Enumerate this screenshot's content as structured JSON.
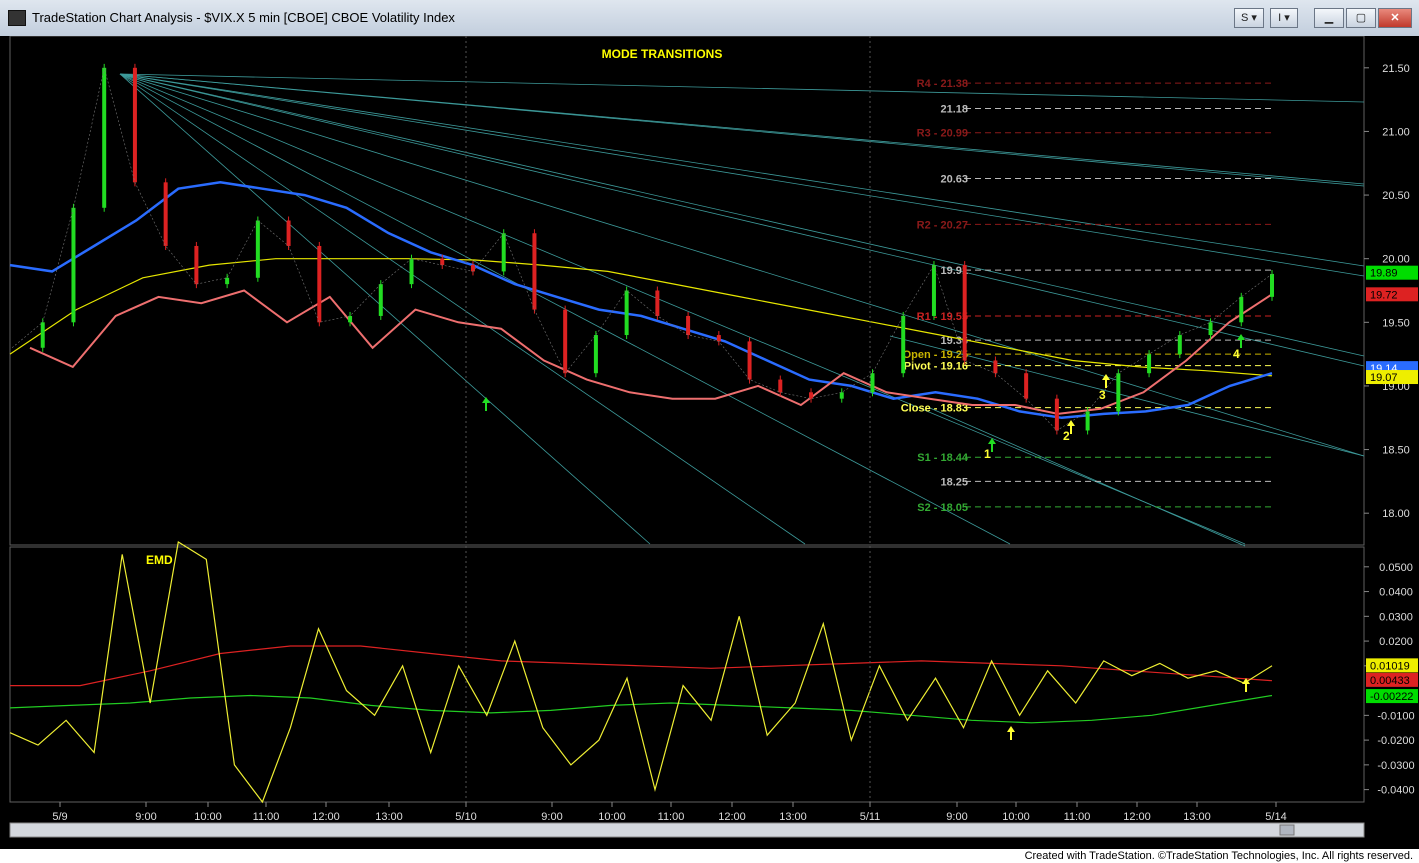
{
  "window": {
    "title": "TradeStation Chart Analysis - $VIX.X 5 min [CBOE] CBOE Volatility Index",
    "menu_s": "S",
    "menu_i": "I"
  },
  "status": {
    "footer": "Created with TradeStation. ©TradeStation Technologies, Inc. All rights reserved."
  },
  "chart_data": [
    {
      "type": "line",
      "title": "MODE TRANSITIONS",
      "ylim": [
        17.75,
        21.75
      ],
      "y_ticks": [
        "21.50",
        "21.00",
        "20.50",
        "20.00",
        "19.50",
        "19.00",
        "18.50",
        "18.00"
      ],
      "x_tick_labels": [
        "5/9",
        "9:00",
        "10:00",
        "11:00",
        "12:00",
        "13:00",
        "5/10",
        "9:00",
        "10:00",
        "11:00",
        "12:00",
        "13:00",
        "5/11",
        "9:00",
        "10:00",
        "11:00",
        "12:00",
        "13:00",
        "5/14"
      ],
      "series": [
        {
          "values": [
            19.3,
            19.5,
            20.4,
            21.5,
            20.6,
            20.1,
            19.8,
            19.85,
            20.3,
            20.1,
            19.5,
            19.55,
            19.8,
            20.0,
            19.95,
            19.9,
            20.2,
            19.6,
            19.1,
            19.4,
            19.75,
            19.55,
            19.4,
            19.35,
            19.05,
            18.95,
            18.9,
            18.95,
            19.1,
            19.55,
            19.95,
            19.2,
            19.1,
            18.9,
            18.65,
            18.8,
            19.1,
            19.25,
            19.4,
            19.5,
            19.7,
            19.88
          ]
        },
        {
          "values": [
            19.95,
            19.9,
            20.1,
            20.3,
            20.55,
            20.6,
            20.55,
            20.5,
            20.4,
            20.2,
            20.05,
            19.95,
            19.8,
            19.7,
            19.6,
            19.55,
            19.45,
            19.35,
            19.2,
            19.05,
            19.0,
            18.9,
            18.95,
            18.9,
            18.8,
            18.75,
            18.78,
            18.8,
            18.85,
            19.0,
            19.1
          ]
        },
        {
          "values": [
            19.25,
            19.6,
            19.85,
            19.95,
            20.0,
            20.0,
            20.0,
            19.99,
            19.95,
            19.9,
            19.8,
            19.7,
            19.6,
            19.5,
            19.4,
            19.3,
            19.2,
            19.15,
            19.12,
            19.08
          ]
        },
        {
          "values": [
            19.3,
            19.15,
            19.55,
            19.7,
            19.65,
            19.75,
            19.5,
            19.7,
            19.3,
            19.6,
            19.5,
            19.45,
            19.2,
            19.05,
            18.95,
            18.9,
            18.9,
            19.0,
            18.85,
            19.1,
            18.95,
            18.9,
            18.85,
            18.85,
            18.78,
            18.82,
            18.95,
            19.2,
            19.5,
            19.72
          ]
        }
      ],
      "pivot_levels": [
        {
          "label": "R4 - 21.38",
          "value": 21.38,
          "color": "#8b1a1a"
        },
        {
          "label": "21.18",
          "value": 21.18,
          "color": "#bbbbbb"
        },
        {
          "label": "R3 - 20.99",
          "value": 20.99,
          "color": "#8b1a1a"
        },
        {
          "label": "20.63",
          "value": 20.63,
          "color": "#bbbbbb"
        },
        {
          "label": "R2 - 20.27",
          "value": 20.27,
          "color": "#8b1a1a"
        },
        {
          "label": "19.91",
          "value": 19.91,
          "color": "#bbbbbb"
        },
        {
          "label": "R1 - 19.55",
          "value": 19.55,
          "color": "#cc2222"
        },
        {
          "label": "19.36",
          "value": 19.36,
          "color": "#bbbbbb"
        },
        {
          "label": "Open - 19.25",
          "value": 19.25,
          "color": "#c9b400"
        },
        {
          "label": "Pivot - 19.16",
          "value": 19.16,
          "color": "#ffff55"
        },
        {
          "label": "Close - 18.83",
          "value": 18.83,
          "color": "#ffff55"
        },
        {
          "label": "S1 - 18.44",
          "value": 18.44,
          "color": "#33aa33"
        },
        {
          "label": "18.25",
          "value": 18.25,
          "color": "#bbbbbb"
        },
        {
          "label": "S2 - 18.05",
          "value": 18.05,
          "color": "#33aa33"
        }
      ],
      "price_tags": [
        {
          "label": "19.89",
          "value": 19.89,
          "color": "#00dd00"
        },
        {
          "label": "19.72",
          "value": 19.72,
          "color": "#dd2222"
        },
        {
          "label": "19.14",
          "value": 19.14,
          "color": "#2a6cff"
        },
        {
          "label": "19.07",
          "value": 19.07,
          "color": "#eeee00"
        }
      ],
      "annotations": [
        "1",
        "2",
        "3",
        "4"
      ]
    },
    {
      "type": "line",
      "title": "EMD",
      "ylim": [
        -0.045,
        0.058
      ],
      "y_ticks": [
        "0.0500",
        "0.0400",
        "0.0300",
        "0.0200",
        "0.0100",
        "-0.0100",
        "-0.0200",
        "-0.0300",
        "-0.0400"
      ],
      "series": [
        {
          "values": [
            -0.017,
            -0.022,
            -0.012,
            -0.025,
            0.055,
            -0.005,
            0.06,
            0.053,
            -0.03,
            -0.045,
            -0.015,
            0.025,
            0.0,
            -0.01,
            0.01,
            -0.025,
            0.01,
            -0.01,
            0.02,
            -0.015,
            -0.03,
            -0.02,
            0.005,
            -0.04,
            0.002,
            -0.012,
            0.03,
            -0.018,
            -0.005,
            0.027,
            -0.02,
            0.01,
            -0.012,
            0.005,
            -0.015,
            0.012,
            -0.01,
            0.008,
            -0.005,
            0.012,
            0.006,
            0.011,
            0.005,
            0.008,
            0.003,
            0.01
          ]
        },
        {
          "values": [
            0.002,
            0.002,
            0.008,
            0.015,
            0.018,
            0.018,
            0.015,
            0.012,
            0.011,
            0.01,
            0.009,
            0.01,
            0.011,
            0.012,
            0.011,
            0.01,
            0.008,
            0.006,
            0.004
          ]
        },
        {
          "values": [
            -0.007,
            -0.006,
            -0.005,
            -0.003,
            -0.002,
            -0.003,
            -0.006,
            -0.008,
            -0.009,
            -0.008,
            -0.006,
            -0.005,
            -0.006,
            -0.007,
            -0.008,
            -0.01,
            -0.012,
            -0.013,
            -0.012,
            -0.01,
            -0.006,
            -0.002
          ]
        }
      ],
      "price_tags": [
        {
          "label": "0.01019",
          "value": 0.01019,
          "color": "#eeee00"
        },
        {
          "label": "0.00433",
          "value": 0.00433,
          "color": "#dd2222"
        },
        {
          "label": "-0.00222",
          "value": -0.00222,
          "color": "#00dd00"
        }
      ]
    }
  ]
}
